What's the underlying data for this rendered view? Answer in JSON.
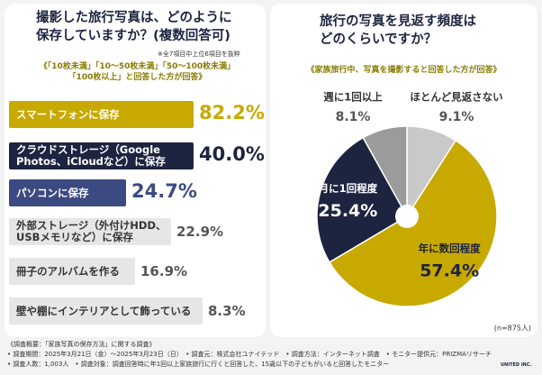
{
  "chart_data": [
    {
      "type": "ranking",
      "title_lines": [
        "撮影した旅行写真は、どのように",
        "保存していますか？(複数回答可)"
      ],
      "note": "※全7項目中上位6項目を抜粋",
      "subtitle_lines": [
        "《「10枚未満」「10〜50枚未満」「50〜100枚未満」",
        "「100枚以上」と回答した方が回答》"
      ],
      "categories": [
        "スマートフォンに保存",
        "クラウドストレージ（Google\nPhotos、iCloudなど）に保存",
        "パソコンに保存",
        "外部ストレージ（外付けHDD、\nUSBメモリなど）に保存",
        "冊子のアルバムを作る",
        "壁や棚にインテリアとして飾っている"
      ],
      "values": [
        82.2,
        40.0,
        24.7,
        22.9,
        16.9,
        8.3
      ],
      "value_labels": [
        "82.2%",
        "40.0%",
        "24.7%",
        "22.9%",
        "16.9%",
        "8.3%"
      ],
      "colors": [
        "#c8a900",
        "#1d2440",
        "#3b4a80",
        "#e6e6e6",
        "#e6e6e6",
        "#e6e6e6"
      ]
    },
    {
      "type": "pie",
      "title_lines": [
        "旅行の写真を見返す頻度は",
        "どのくらいですか？"
      ],
      "subtitle": "《家族旅行中、写真を撮影すると回答した方が回答》",
      "categories": [
        "ほとんど見返さない",
        "年に数回程度",
        "月に1回程度",
        "週に1回以上"
      ],
      "values": [
        9.1,
        57.4,
        25.4,
        8.1
      ],
      "value_labels": [
        "9.1%",
        "57.4%",
        "25.4%",
        "8.1%"
      ],
      "colors": [
        "#c9c9c9",
        "#c8a900",
        "#1d2440",
        "#9b9b9b"
      ],
      "n_label": "(n=875人)"
    }
  ],
  "footer": {
    "lines": [
      "《調査概要：「家族写真の保存方法」に関する調査》",
      "• 調査期間：2025年3月21日（金）〜2025年3月23日（日）　• 調査元：株式会社ユナイテッド　• 調査方法：インターネット調査　• モニター提供元：PRIZMAリサーチ",
      "• 調査人数：1,003人　• 調査対象：調査回答時に年1回以上家族旅行に行くと回答した、15歳以下の子どもがいると回答したモニター"
    ],
    "logo": "UNITED INC."
  }
}
